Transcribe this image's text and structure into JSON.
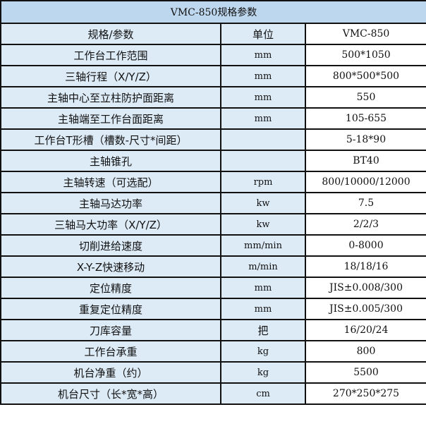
{
  "title": "VMC-850规格参数",
  "header": {
    "spec": "规格/参数",
    "unit": "单位",
    "model": "VMC-850"
  },
  "rows": [
    {
      "spec": "工作台工作范围",
      "unit": "mm",
      "value": "500*1050"
    },
    {
      "spec": "三轴行程（X/Y/Z）",
      "unit": "mm",
      "value": "800*500*500"
    },
    {
      "spec": "主轴中心至立柱防护面距离",
      "unit": "mm",
      "value": "550"
    },
    {
      "spec": "主轴端至工作台面距离",
      "unit": "mm",
      "value": "105-655"
    },
    {
      "spec": "工作台T形槽（槽数-尺寸*间距）",
      "unit": "",
      "value": "5-18*90"
    },
    {
      "spec": "主轴锥孔",
      "unit": "",
      "value": "BT40"
    },
    {
      "spec": "主轴转速（可选配）",
      "unit": "rpm",
      "value": "800/10000/12000"
    },
    {
      "spec": "主轴马达功率",
      "unit": "kw",
      "value": "7.5"
    },
    {
      "spec": "三轴马大功率（X/Y/Z）",
      "unit": "kw",
      "value": "2/2/3"
    },
    {
      "spec": "切削进给速度",
      "unit": "mm/min",
      "value": "0-8000"
    },
    {
      "spec": "X-Y-Z快速移动",
      "unit": "m/min",
      "value": "18/18/16"
    },
    {
      "spec": "定位精度",
      "unit": "mm",
      "value": "JIS±0.008/300"
    },
    {
      "spec": "重复定位精度",
      "unit": "mm",
      "value": "JIS±0.005/300"
    },
    {
      "spec": "刀库容量",
      "unit": "把",
      "value": "16/20/24"
    },
    {
      "spec": "工作台承重",
      "unit": "kg",
      "value": "800"
    },
    {
      "spec": "机台净重（约）",
      "unit": "kg",
      "value": "5500"
    },
    {
      "spec": "机台尺寸（长*宽*高）",
      "unit": "cm",
      "value": "270*250*275"
    }
  ]
}
